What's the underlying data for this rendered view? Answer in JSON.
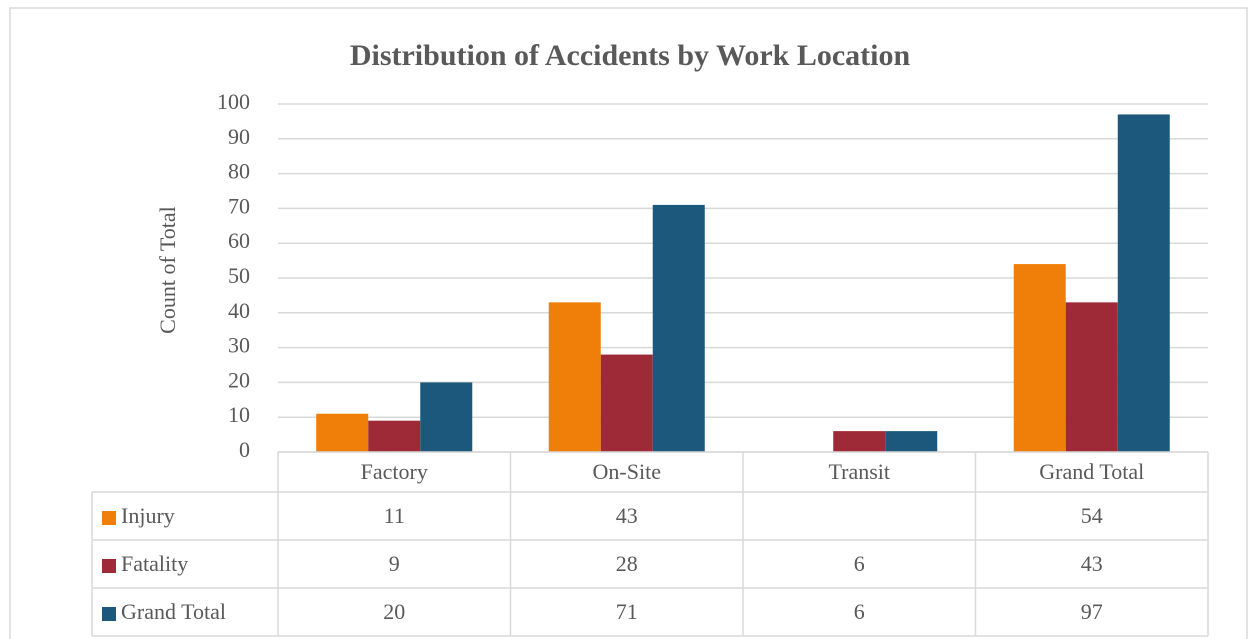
{
  "chart_data": {
    "type": "bar",
    "title": "Distribution of Accidents by Work Location",
    "y_label": "Count of Total",
    "categories": [
      "Factory",
      "On-Site",
      "Transit",
      "Grand Total"
    ],
    "series": [
      {
        "name": "Injury",
        "color": "#f07f09",
        "values": [
          11,
          43,
          null,
          54
        ]
      },
      {
        "name": "Fatality",
        "color": "#9e2a37",
        "values": [
          9,
          28,
          6,
          43
        ]
      },
      {
        "name": "Grand Total",
        "color": "#1b587c",
        "values": [
          20,
          71,
          6,
          97
        ]
      }
    ],
    "ylim": [
      0,
      100
    ],
    "yticks": [
      0,
      10,
      20,
      30,
      40,
      50,
      60,
      70,
      80,
      90,
      100
    ],
    "grid": true,
    "data_table": true
  }
}
